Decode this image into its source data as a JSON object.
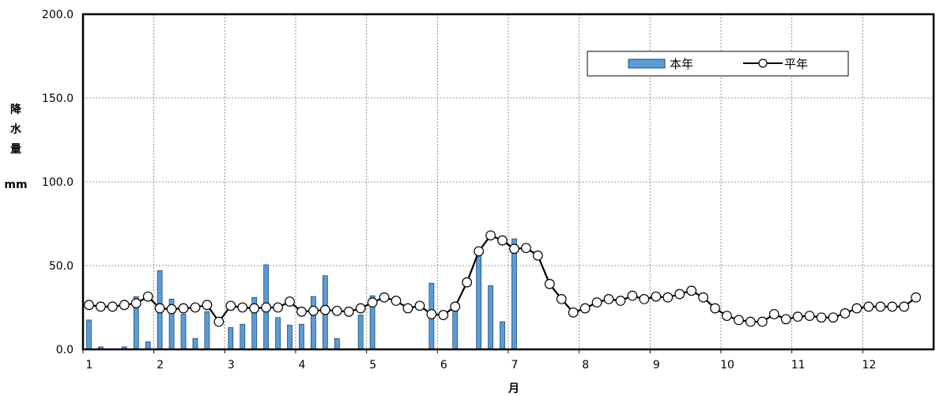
{
  "chart_data": {
    "type": "bar+line",
    "title": "",
    "xlabel": "月",
    "ylabel_chars": [
      "降",
      "水",
      "量"
    ],
    "ylabel_unit": "mm",
    "ylim": [
      0,
      200
    ],
    "y_ticks": [
      "0.0",
      "50.0",
      "100.0",
      "150.0",
      "200.0"
    ],
    "x_ticks": [
      "1",
      "2",
      "3",
      "4",
      "5",
      "6",
      "7",
      "8",
      "9",
      "10",
      "11",
      "12"
    ],
    "x_range": [
      1,
      13
    ],
    "grid": true,
    "legend_position": "top-right",
    "legend": {
      "bar_label": "本年",
      "line_label": "平年"
    },
    "colors": {
      "bar_fill": "#5b9bd5",
      "bar_stroke": "#1f4e79",
      "line": "#000000",
      "marker_fill": "#ffffff"
    },
    "periods_per_month": 6,
    "series": [
      {
        "name": "本年",
        "kind": "bar",
        "values": [
          17.5,
          1.5,
          0,
          1.5,
          31.5,
          4.5,
          47,
          30,
          21,
          6.5,
          22.5,
          0,
          13,
          15,
          31,
          50.5,
          19,
          14.5,
          15,
          31.5,
          44,
          6.5,
          0,
          20.5,
          32,
          0,
          0,
          0,
          0,
          39.5,
          0,
          26,
          0,
          57.5,
          38,
          16.5,
          66
        ]
      },
      {
        "name": "平年",
        "kind": "line",
        "values": [
          26.5,
          25.5,
          25.5,
          26.5,
          27.5,
          31.5,
          24.5,
          24,
          24.5,
          25,
          26.5,
          16.5,
          26,
          25,
          24.5,
          25,
          25,
          28.5,
          22.5,
          23,
          23.5,
          23,
          22.5,
          24.5,
          28,
          31,
          29,
          24.5,
          26,
          21,
          20.5,
          25.5,
          40,
          58.5,
          68,
          65,
          60,
          60.5,
          56,
          39,
          30,
          22,
          24.5,
          28,
          30,
          29,
          32,
          30,
          31.5,
          31,
          33,
          35,
          31,
          24.5,
          20,
          17.5,
          16.5,
          16.5,
          21,
          18,
          19.5,
          20,
          19,
          19,
          21.5,
          24.5,
          25.5,
          25.5,
          25.5,
          25.5,
          31
        ]
      }
    ]
  }
}
